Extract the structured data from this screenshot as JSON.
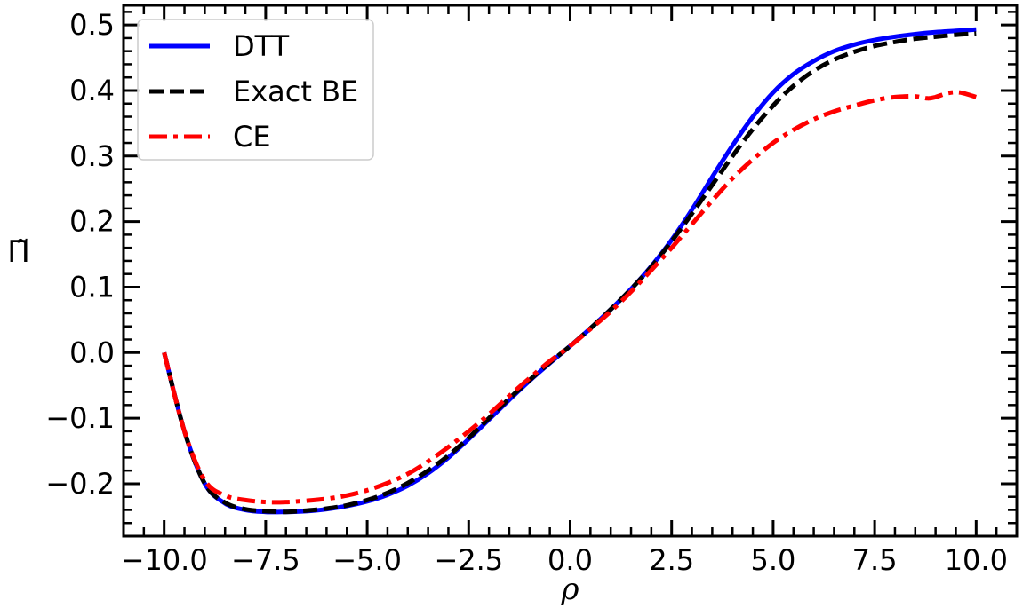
{
  "chart_data": {
    "type": "line",
    "xlabel": "ρ",
    "ylabel": "Π̃",
    "xlim": [
      -11.0,
      11.0
    ],
    "ylim": [
      -0.28,
      0.53
    ],
    "x_ticks": [
      -10.0,
      -7.5,
      -5.0,
      -2.5,
      0.0,
      2.5,
      5.0,
      7.5,
      10.0
    ],
    "x_tick_labels": [
      "−10.0",
      "−7.5",
      "−5.0",
      "−2.5",
      "0.0",
      "2.5",
      "5.0",
      "7.5",
      "10.0"
    ],
    "y_ticks": [
      -0.2,
      -0.1,
      0.0,
      0.1,
      0.2,
      0.3,
      0.4,
      0.5
    ],
    "y_tick_labels": [
      "−0.2",
      "−0.1",
      "0.0",
      "0.1",
      "0.2",
      "0.3",
      "0.4",
      "0.5"
    ],
    "legend_position": "top-left",
    "grid": false,
    "series": [
      {
        "name": "DTT",
        "color": "#0000ff",
        "style": "solid",
        "x": [
          -10.0,
          -9.5,
          -9.0,
          -8.5,
          -8.0,
          -7.5,
          -7.0,
          -6.5,
          -6.0,
          -5.5,
          -5.0,
          -4.5,
          -4.0,
          -3.5,
          -3.0,
          -2.5,
          -2.0,
          -1.5,
          -1.0,
          -0.5,
          0.0,
          0.5,
          1.0,
          1.5,
          2.0,
          2.5,
          3.0,
          3.5,
          4.0,
          4.5,
          5.0,
          5.5,
          6.0,
          6.5,
          7.0,
          7.5,
          8.0,
          8.5,
          9.0,
          9.5,
          10.0
        ],
        "y": [
          0.0,
          -0.12,
          -0.2,
          -0.23,
          -0.24,
          -0.243,
          -0.243,
          -0.242,
          -0.239,
          -0.234,
          -0.227,
          -0.217,
          -0.203,
          -0.184,
          -0.16,
          -0.132,
          -0.102,
          -0.072,
          -0.043,
          -0.016,
          0.01,
          0.037,
          0.066,
          0.097,
          0.132,
          0.172,
          0.218,
          0.268,
          0.316,
          0.36,
          0.397,
          0.425,
          0.445,
          0.46,
          0.47,
          0.477,
          0.482,
          0.486,
          0.489,
          0.491,
          0.493
        ]
      },
      {
        "name": "Exact BE",
        "color": "#000000",
        "style": "dashed",
        "x": [
          -10.0,
          -9.5,
          -9.0,
          -8.5,
          -8.0,
          -7.5,
          -7.0,
          -6.5,
          -6.0,
          -5.5,
          -5.0,
          -4.5,
          -4.0,
          -3.5,
          -3.0,
          -2.5,
          -2.0,
          -1.5,
          -1.0,
          -0.5,
          0.0,
          0.5,
          1.0,
          1.5,
          2.0,
          2.5,
          3.0,
          3.5,
          4.0,
          4.5,
          5.0,
          5.5,
          6.0,
          6.5,
          7.0,
          7.5,
          8.0,
          8.5,
          9.0,
          9.5,
          10.0
        ],
        "y": [
          0.0,
          -0.12,
          -0.2,
          -0.229,
          -0.239,
          -0.242,
          -0.243,
          -0.241,
          -0.238,
          -0.233,
          -0.225,
          -0.214,
          -0.199,
          -0.18,
          -0.157,
          -0.13,
          -0.1,
          -0.07,
          -0.042,
          -0.015,
          0.01,
          0.037,
          0.066,
          0.097,
          0.131,
          0.17,
          0.212,
          0.256,
          0.3,
          0.341,
          0.377,
          0.407,
          0.43,
          0.447,
          0.459,
          0.468,
          0.474,
          0.479,
          0.482,
          0.485,
          0.487
        ]
      },
      {
        "name": "CE",
        "color": "#ff0000",
        "style": "dashdot",
        "x": [
          -10.0,
          -9.5,
          -9.0,
          -8.5,
          -8.0,
          -7.5,
          -7.0,
          -6.5,
          -6.0,
          -5.5,
          -5.0,
          -4.5,
          -4.0,
          -3.5,
          -3.0,
          -2.5,
          -2.0,
          -1.5,
          -1.0,
          -0.5,
          0.0,
          0.5,
          1.0,
          1.5,
          2.0,
          2.5,
          3.0,
          3.5,
          4.0,
          4.5,
          5.0,
          5.5,
          6.0,
          6.5,
          7.0,
          7.5,
          8.0,
          8.5,
          8.8,
          9.0,
          9.3,
          9.6,
          10.0
        ],
        "y": [
          0.0,
          -0.12,
          -0.195,
          -0.218,
          -0.225,
          -0.228,
          -0.228,
          -0.226,
          -0.223,
          -0.218,
          -0.21,
          -0.199,
          -0.185,
          -0.166,
          -0.144,
          -0.12,
          -0.094,
          -0.066,
          -0.039,
          -0.013,
          0.01,
          0.036,
          0.063,
          0.093,
          0.126,
          0.16,
          0.196,
          0.232,
          0.266,
          0.295,
          0.32,
          0.34,
          0.356,
          0.368,
          0.377,
          0.385,
          0.39,
          0.391,
          0.388,
          0.39,
          0.396,
          0.397,
          0.39
        ]
      }
    ]
  }
}
